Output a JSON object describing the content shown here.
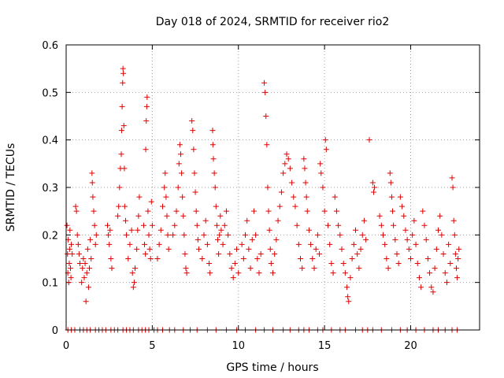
{
  "chart_data": {
    "type": "scatter",
    "title": "Day 018 of 2024, SRMTID for receiver rio2",
    "xlabel": "GPS time / hours",
    "ylabel": "SRMTID / TECUs",
    "xlim": [
      0,
      24
    ],
    "ylim": [
      0,
      0.6
    ],
    "xticks": [
      0,
      5,
      10,
      15,
      20
    ],
    "xtick_labels": [
      "0",
      "5",
      "10",
      "15",
      "20"
    ],
    "yticks": [
      0,
      0.1,
      0.2,
      0.3,
      0.4,
      0.5,
      0.6
    ],
    "ytick_labels": [
      "0",
      "0.1",
      "0.2",
      "0.3",
      "0.4",
      "0.5",
      "0.6"
    ],
    "grid": true,
    "marker": "+",
    "series": [
      {
        "name": "SRMTID",
        "color": "#e00000",
        "points": [
          [
            0.05,
            0.22
          ],
          [
            0.08,
            0.16
          ],
          [
            0.1,
            0.12
          ],
          [
            0.12,
            0.19
          ],
          [
            0.15,
            0.1
          ],
          [
            0.18,
            0.14
          ],
          [
            0.2,
            0.17
          ],
          [
            0.22,
            0.21
          ],
          [
            0.25,
            0.13
          ],
          [
            0.28,
            0.11
          ],
          [
            0.3,
            0.18
          ],
          [
            0.35,
            0.16
          ],
          [
            0.55,
            0.26
          ],
          [
            0.6,
            0.25
          ],
          [
            0.65,
            0.2
          ],
          [
            0.7,
            0.18
          ],
          [
            0.75,
            0.16
          ],
          [
            0.8,
            0.14
          ],
          [
            0.9,
            0.1
          ],
          [
            0.95,
            0.13
          ],
          [
            1.0,
            0.15
          ],
          [
            1.05,
            0.11
          ],
          [
            1.1,
            0.14
          ],
          [
            1.15,
            0.06
          ],
          [
            1.2,
            0.12
          ],
          [
            1.25,
            0.17
          ],
          [
            1.3,
            0.09
          ],
          [
            1.35,
            0.13
          ],
          [
            1.4,
            0.19
          ],
          [
            1.45,
            0.15
          ],
          [
            1.5,
            0.33
          ],
          [
            1.52,
            0.31
          ],
          [
            1.55,
            0.28
          ],
          [
            1.6,
            0.25
          ],
          [
            1.65,
            0.22
          ],
          [
            1.7,
            0.18
          ],
          [
            1.75,
            0.2
          ],
          [
            2.4,
            0.22
          ],
          [
            2.45,
            0.2
          ],
          [
            2.5,
            0.18
          ],
          [
            2.55,
            0.21
          ],
          [
            2.6,
            0.15
          ],
          [
            2.65,
            0.13
          ],
          [
            3.0,
            0.24
          ],
          [
            3.05,
            0.26
          ],
          [
            3.1,
            0.3
          ],
          [
            3.15,
            0.34
          ],
          [
            3.2,
            0.37
          ],
          [
            3.22,
            0.42
          ],
          [
            3.25,
            0.47
          ],
          [
            3.28,
            0.52
          ],
          [
            3.3,
            0.55
          ],
          [
            3.32,
            0.54
          ],
          [
            3.35,
            0.43
          ],
          [
            3.38,
            0.34
          ],
          [
            3.4,
            0.26
          ],
          [
            3.45,
            0.23
          ],
          [
            3.5,
            0.2
          ],
          [
            3.6,
            0.15
          ],
          [
            3.7,
            0.18
          ],
          [
            3.8,
            0.21
          ],
          [
            3.85,
            0.12
          ],
          [
            3.9,
            0.09
          ],
          [
            3.95,
            0.1
          ],
          [
            4.0,
            0.13
          ],
          [
            4.1,
            0.17
          ],
          [
            4.15,
            0.21
          ],
          [
            4.2,
            0.24
          ],
          [
            4.25,
            0.28
          ],
          [
            4.5,
            0.22
          ],
          [
            4.55,
            0.18
          ],
          [
            4.6,
            0.16
          ],
          [
            4.62,
            0.38
          ],
          [
            4.65,
            0.44
          ],
          [
            4.68,
            0.47
          ],
          [
            4.7,
            0.49
          ],
          [
            4.75,
            0.25
          ],
          [
            4.8,
            0.2
          ],
          [
            4.85,
            0.17
          ],
          [
            4.9,
            0.15
          ],
          [
            4.95,
            0.27
          ],
          [
            5.0,
            0.22
          ],
          [
            5.3,
            0.15
          ],
          [
            5.4,
            0.18
          ],
          [
            5.5,
            0.21
          ],
          [
            5.6,
            0.26
          ],
          [
            5.7,
            0.3
          ],
          [
            5.75,
            0.33
          ],
          [
            5.8,
            0.28
          ],
          [
            5.85,
            0.24
          ],
          [
            5.9,
            0.2
          ],
          [
            5.95,
            0.17
          ],
          [
            6.2,
            0.2
          ],
          [
            6.3,
            0.22
          ],
          [
            6.4,
            0.25
          ],
          [
            6.5,
            0.3
          ],
          [
            6.55,
            0.35
          ],
          [
            6.6,
            0.39
          ],
          [
            6.65,
            0.37
          ],
          [
            6.7,
            0.33
          ],
          [
            6.75,
            0.28
          ],
          [
            6.8,
            0.24
          ],
          [
            6.85,
            0.2
          ],
          [
            6.9,
            0.16
          ],
          [
            6.95,
            0.13
          ],
          [
            7.0,
            0.12
          ],
          [
            7.3,
            0.44
          ],
          [
            7.35,
            0.42
          ],
          [
            7.4,
            0.38
          ],
          [
            7.45,
            0.33
          ],
          [
            7.5,
            0.29
          ],
          [
            7.55,
            0.25
          ],
          [
            7.6,
            0.22
          ],
          [
            7.65,
            0.19
          ],
          [
            7.7,
            0.17
          ],
          [
            7.9,
            0.15
          ],
          [
            8.0,
            0.2
          ],
          [
            8.1,
            0.23
          ],
          [
            8.2,
            0.18
          ],
          [
            8.3,
            0.14
          ],
          [
            8.35,
            0.12
          ],
          [
            8.5,
            0.42
          ],
          [
            8.52,
            0.39
          ],
          [
            8.55,
            0.36
          ],
          [
            8.6,
            0.33
          ],
          [
            8.65,
            0.3
          ],
          [
            8.7,
            0.26
          ],
          [
            8.75,
            0.22
          ],
          [
            8.8,
            0.19
          ],
          [
            8.85,
            0.16
          ],
          [
            8.9,
            0.2
          ],
          [
            8.95,
            0.24
          ],
          [
            9.0,
            0.21
          ],
          [
            9.1,
            0.18
          ],
          [
            9.2,
            0.22
          ],
          [
            9.3,
            0.25
          ],
          [
            9.4,
            0.2
          ],
          [
            9.5,
            0.16
          ],
          [
            9.6,
            0.13
          ],
          [
            9.7,
            0.11
          ],
          [
            9.8,
            0.14
          ],
          [
            9.9,
            0.17
          ],
          [
            10.0,
            0.12
          ],
          [
            10.2,
            0.18
          ],
          [
            10.3,
            0.15
          ],
          [
            10.4,
            0.2
          ],
          [
            10.5,
            0.23
          ],
          [
            10.6,
            0.17
          ],
          [
            10.7,
            0.13
          ],
          [
            10.8,
            0.19
          ],
          [
            10.9,
            0.25
          ],
          [
            11.0,
            0.2
          ],
          [
            11.1,
            0.15
          ],
          [
            11.2,
            0.12
          ],
          [
            11.3,
            0.16
          ],
          [
            11.5,
            0.52
          ],
          [
            11.55,
            0.5
          ],
          [
            11.6,
            0.45
          ],
          [
            11.65,
            0.39
          ],
          [
            11.7,
            0.3
          ],
          [
            11.75,
            0.25
          ],
          [
            11.8,
            0.21
          ],
          [
            11.85,
            0.17
          ],
          [
            11.9,
            0.14
          ],
          [
            12.0,
            0.12
          ],
          [
            12.1,
            0.16
          ],
          [
            12.2,
            0.19
          ],
          [
            12.3,
            0.23
          ],
          [
            12.4,
            0.26
          ],
          [
            12.5,
            0.29
          ],
          [
            12.6,
            0.33
          ],
          [
            12.7,
            0.35
          ],
          [
            12.8,
            0.37
          ],
          [
            12.9,
            0.36
          ],
          [
            13.0,
            0.34
          ],
          [
            13.1,
            0.31
          ],
          [
            13.2,
            0.28
          ],
          [
            13.3,
            0.26
          ],
          [
            13.4,
            0.22
          ],
          [
            13.5,
            0.18
          ],
          [
            13.6,
            0.15
          ],
          [
            13.7,
            0.13
          ],
          [
            13.8,
            0.36
          ],
          [
            13.85,
            0.34
          ],
          [
            13.9,
            0.31
          ],
          [
            13.95,
            0.28
          ],
          [
            14.0,
            0.25
          ],
          [
            14.1,
            0.21
          ],
          [
            14.2,
            0.18
          ],
          [
            14.3,
            0.15
          ],
          [
            14.4,
            0.13
          ],
          [
            14.5,
            0.17
          ],
          [
            14.6,
            0.2
          ],
          [
            14.7,
            0.16
          ],
          [
            14.75,
            0.35
          ],
          [
            14.8,
            0.33
          ],
          [
            14.9,
            0.3
          ],
          [
            15.0,
            0.25
          ],
          [
            15.05,
            0.4
          ],
          [
            15.1,
            0.38
          ],
          [
            15.2,
            0.22
          ],
          [
            15.3,
            0.18
          ],
          [
            15.4,
            0.14
          ],
          [
            15.5,
            0.12
          ],
          [
            15.6,
            0.28
          ],
          [
            15.7,
            0.25
          ],
          [
            15.8,
            0.22
          ],
          [
            15.9,
            0.2
          ],
          [
            16.0,
            0.17
          ],
          [
            16.1,
            0.14
          ],
          [
            16.2,
            0.12
          ],
          [
            16.3,
            0.09
          ],
          [
            16.35,
            0.07
          ],
          [
            16.4,
            0.06
          ],
          [
            16.5,
            0.11
          ],
          [
            16.6,
            0.15
          ],
          [
            16.7,
            0.18
          ],
          [
            16.8,
            0.21
          ],
          [
            16.9,
            0.16
          ],
          [
            17.0,
            0.13
          ],
          [
            17.1,
            0.17
          ],
          [
            17.2,
            0.2
          ],
          [
            17.3,
            0.23
          ],
          [
            17.4,
            0.19
          ],
          [
            17.6,
            0.4
          ],
          [
            17.8,
            0.31
          ],
          [
            17.85,
            0.29
          ],
          [
            17.9,
            0.3
          ],
          [
            18.2,
            0.24
          ],
          [
            18.3,
            0.22
          ],
          [
            18.4,
            0.2
          ],
          [
            18.5,
            0.18
          ],
          [
            18.6,
            0.15
          ],
          [
            18.7,
            0.13
          ],
          [
            18.8,
            0.33
          ],
          [
            18.85,
            0.31
          ],
          [
            18.9,
            0.28
          ],
          [
            18.95,
            0.25
          ],
          [
            19.0,
            0.22
          ],
          [
            19.1,
            0.19
          ],
          [
            19.2,
            0.16
          ],
          [
            19.3,
            0.14
          ],
          [
            19.4,
            0.28
          ],
          [
            19.5,
            0.26
          ],
          [
            19.6,
            0.24
          ],
          [
            19.7,
            0.21
          ],
          [
            19.8,
            0.19
          ],
          [
            19.9,
            0.17
          ],
          [
            20.0,
            0.15
          ],
          [
            20.1,
            0.2
          ],
          [
            20.2,
            0.23
          ],
          [
            20.3,
            0.18
          ],
          [
            20.4,
            0.14
          ],
          [
            20.5,
            0.11
          ],
          [
            20.6,
            0.09
          ],
          [
            20.7,
            0.25
          ],
          [
            20.8,
            0.22
          ],
          [
            20.9,
            0.19
          ],
          [
            21.0,
            0.15
          ],
          [
            21.1,
            0.12
          ],
          [
            21.2,
            0.09
          ],
          [
            21.3,
            0.08
          ],
          [
            21.4,
            0.13
          ],
          [
            21.5,
            0.17
          ],
          [
            21.6,
            0.21
          ],
          [
            21.7,
            0.24
          ],
          [
            21.8,
            0.2
          ],
          [
            21.9,
            0.16
          ],
          [
            22.0,
            0.12
          ],
          [
            22.1,
            0.1
          ],
          [
            22.2,
            0.18
          ],
          [
            22.3,
            0.14
          ],
          [
            22.4,
            0.32
          ],
          [
            22.45,
            0.3
          ],
          [
            22.5,
            0.23
          ],
          [
            22.55,
            0.2
          ],
          [
            22.6,
            0.16
          ],
          [
            22.65,
            0.13
          ],
          [
            22.7,
            0.11
          ],
          [
            22.75,
            0.15
          ],
          [
            22.8,
            0.17
          ]
        ],
        "zero_points_x": [
          0.1,
          0.3,
          0.5,
          0.8,
          1.0,
          1.2,
          1.4,
          1.7,
          1.9,
          2.1,
          2.3,
          2.6,
          2.8,
          3.0,
          3.3,
          3.5,
          3.7,
          3.9,
          4.2,
          4.4,
          4.6,
          4.8,
          5.1,
          5.3,
          5.6,
          6.0,
          6.3,
          6.8,
          7.2,
          7.6,
          8.2,
          8.7,
          9.3,
          9.9,
          10.4,
          11.0,
          11.5,
          12.0,
          12.6,
          13.0,
          13.5,
          13.8,
          14.1,
          14.6,
          14.9,
          15.4,
          15.9,
          16.2,
          16.8,
          17.2,
          17.5,
          17.8,
          18.3,
          18.9,
          19.4,
          19.8,
          20.3,
          20.8,
          21.3,
          21.6,
          22.0,
          22.4,
          22.7
        ]
      }
    ]
  }
}
